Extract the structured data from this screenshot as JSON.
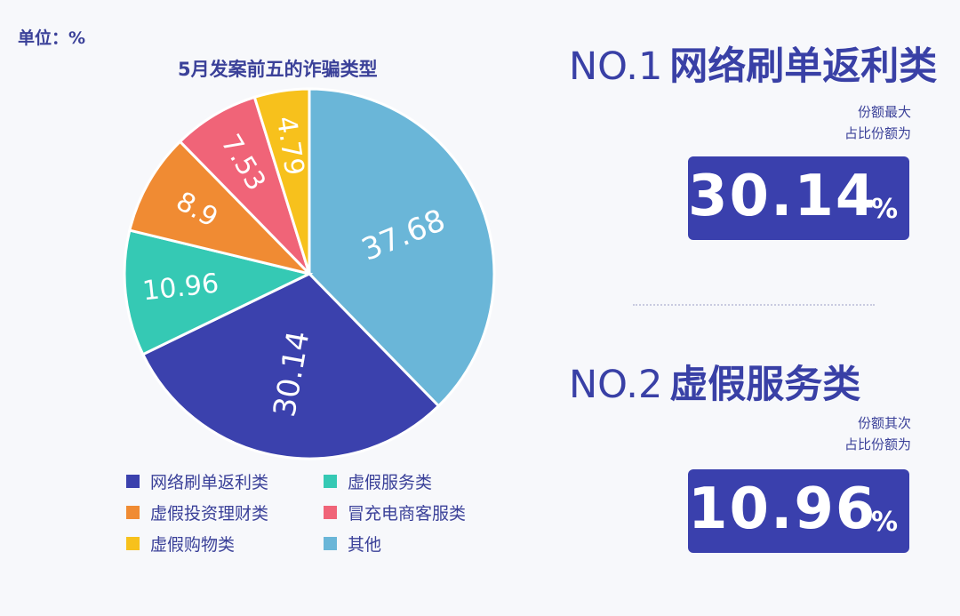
{
  "unit_label": "单位：%",
  "chart_data": {
    "type": "pie",
    "title": "5月发案前五的诈骗类型",
    "slices": [
      {
        "name": "其他",
        "value": 37.68,
        "label": "37.68",
        "color": "#6ab6d8"
      },
      {
        "name": "网络刷单返利类",
        "value": 30.14,
        "label": "30.14",
        "color": "#3b41ad"
      },
      {
        "name": "虚假服务类",
        "value": 10.96,
        "label": "10.96",
        "color": "#35c9b4"
      },
      {
        "name": "虚假投资理财类",
        "value": 8.9,
        "label": "8.9",
        "color": "#f08b33"
      },
      {
        "name": "冒充电商客服类",
        "value": 7.53,
        "label": "7.53",
        "color": "#f06478"
      },
      {
        "name": "虚假购物类",
        "value": 4.79,
        "label": "4.79",
        "color": "#f7c11c"
      }
    ],
    "legend": [
      {
        "name": "网络刷单返利类",
        "color": "#3b41ad"
      },
      {
        "name": "虚假服务类",
        "color": "#35c9b4"
      },
      {
        "name": "虚假投资理财类",
        "color": "#f08b33"
      },
      {
        "name": "冒充电商客服类",
        "color": "#f06478"
      },
      {
        "name": "虚假购物类",
        "color": "#f7c11c"
      },
      {
        "name": "其他",
        "color": "#6ab6d8"
      }
    ],
    "legend_position": "bottom"
  },
  "rank1": {
    "no": "NO.1",
    "name": "网络刷单返利类",
    "desc_line1": "份额最大",
    "desc_line2": "占比份额为",
    "value": "30.14",
    "unit": "%"
  },
  "rank2": {
    "no": "NO.2",
    "name": "虚假服务类",
    "desc_line1": "份额其次",
    "desc_line2": "占比份额为",
    "value": "10.96",
    "unit": "%"
  }
}
